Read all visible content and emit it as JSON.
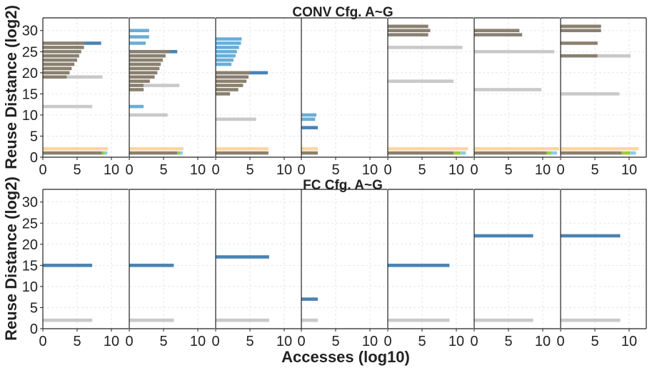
{
  "figure": {
    "top_title": "CONV Cfg. A~G",
    "bottom_title": "FC Cfg. A~G",
    "ylabel": "Reuse Distance (log2)",
    "xlabel": "Accesses (log10)"
  },
  "colors": {
    "dark": "#8a8070",
    "blue": "#4a83b4",
    "lightblue": "#6aaed6",
    "gray": "#c9c9c9",
    "orange": "#fdd5a0",
    "green": "#9acd32",
    "cyan": "#87ceeb"
  },
  "chart_data": {
    "type": "bar",
    "orientation": "horizontal",
    "grid": true,
    "xlim": [
      0,
      12.5
    ],
    "ylim": [
      0,
      33
    ],
    "xticks": [
      0,
      5,
      10
    ],
    "yticks": [
      0,
      5,
      10,
      15,
      20,
      25,
      30
    ],
    "rows": [
      {
        "title": "CONV Cfg. A~G",
        "subplots": [
          {
            "bars": [
              {
                "y": 27,
                "start": 0,
                "end": 6,
                "color": "dark"
              },
              {
                "y": 27,
                "start": 6,
                "end": 8.5,
                "color": "blue"
              },
              {
                "y": 26,
                "start": 0,
                "end": 6,
                "color": "dark"
              },
              {
                "y": 25,
                "start": 0,
                "end": 5.6,
                "color": "dark"
              },
              {
                "y": 24,
                "start": 0,
                "end": 5.3,
                "color": "dark"
              },
              {
                "y": 23,
                "start": 0,
                "end": 5,
                "color": "dark"
              },
              {
                "y": 22,
                "start": 0,
                "end": 4.6,
                "color": "dark"
              },
              {
                "y": 21,
                "start": 0,
                "end": 4.2,
                "color": "dark"
              },
              {
                "y": 20,
                "start": 0,
                "end": 3.9,
                "color": "dark"
              },
              {
                "y": 19,
                "start": 0,
                "end": 3.5,
                "color": "dark"
              },
              {
                "y": 19,
                "start": 3.5,
                "end": 8.7,
                "color": "gray"
              },
              {
                "y": 12,
                "start": 0,
                "end": 7.2,
                "color": "gray"
              },
              {
                "y": 2,
                "start": 0,
                "end": 9.5,
                "color": "orange"
              },
              {
                "y": 1,
                "start": 0,
                "end": 8.6,
                "color": "dark"
              },
              {
                "y": 1,
                "start": 8.6,
                "end": 9.0,
                "color": "green"
              },
              {
                "y": 1,
                "start": 9.0,
                "end": 9.4,
                "color": "cyan"
              }
            ]
          },
          {
            "bars": [
              {
                "y": 30,
                "start": 0,
                "end": 2.9,
                "color": "lightblue"
              },
              {
                "y": 28.5,
                "start": 0,
                "end": 2.9,
                "color": "lightblue"
              },
              {
                "y": 27,
                "start": 0,
                "end": 2.4,
                "color": "lightblue"
              },
              {
                "y": 25,
                "start": 0,
                "end": 7,
                "color": "blue"
              },
              {
                "y": 25,
                "start": 0,
                "end": 5.9,
                "color": "dark"
              },
              {
                "y": 24,
                "start": 0,
                "end": 5.3,
                "color": "dark"
              },
              {
                "y": 23,
                "start": 0,
                "end": 4.9,
                "color": "dark"
              },
              {
                "y": 22,
                "start": 0,
                "end": 4.6,
                "color": "dark"
              },
              {
                "y": 21,
                "start": 0,
                "end": 4.4,
                "color": "dark"
              },
              {
                "y": 20,
                "start": 0,
                "end": 4.1,
                "color": "dark"
              },
              {
                "y": 19,
                "start": 0,
                "end": 3.7,
                "color": "dark"
              },
              {
                "y": 18,
                "start": 0,
                "end": 3.0,
                "color": "dark"
              },
              {
                "y": 17,
                "start": 0,
                "end": 2.1,
                "color": "dark"
              },
              {
                "y": 17,
                "start": 2.1,
                "end": 7.3,
                "color": "gray"
              },
              {
                "y": 16,
                "start": 0,
                "end": 2.1,
                "color": "dark"
              },
              {
                "y": 12,
                "start": 0,
                "end": 2.1,
                "color": "lightblue"
              },
              {
                "y": 10,
                "start": 0,
                "end": 5.6,
                "color": "gray"
              },
              {
                "y": 2,
                "start": 0,
                "end": 7.9,
                "color": "orange"
              },
              {
                "y": 1,
                "start": 0,
                "end": 7.0,
                "color": "dark"
              },
              {
                "y": 1,
                "start": 7.0,
                "end": 7.4,
                "color": "green"
              },
              {
                "y": 1,
                "start": 7.4,
                "end": 7.8,
                "color": "cyan"
              }
            ]
          },
          {
            "bars": [
              {
                "y": 28,
                "start": 0,
                "end": 3.8,
                "color": "lightblue"
              },
              {
                "y": 27,
                "start": 0,
                "end": 3.7,
                "color": "lightblue"
              },
              {
                "y": 26,
                "start": 0,
                "end": 3.4,
                "color": "lightblue"
              },
              {
                "y": 25,
                "start": 0,
                "end": 3.1,
                "color": "lightblue"
              },
              {
                "y": 24,
                "start": 0,
                "end": 2.9,
                "color": "lightblue"
              },
              {
                "y": 23,
                "start": 0,
                "end": 2.6,
                "color": "lightblue"
              },
              {
                "y": 22,
                "start": 0,
                "end": 2.3,
                "color": "lightblue"
              },
              {
                "y": 20,
                "start": 0,
                "end": 7.6,
                "color": "blue"
              },
              {
                "y": 20,
                "start": 0,
                "end": 5.0,
                "color": "dark"
              },
              {
                "y": 19,
                "start": 0,
                "end": 4.8,
                "color": "dark"
              },
              {
                "y": 18,
                "start": 0,
                "end": 4.5,
                "color": "dark"
              },
              {
                "y": 17,
                "start": 0,
                "end": 4.0,
                "color": "dark"
              },
              {
                "y": 16,
                "start": 0,
                "end": 3.3,
                "color": "dark"
              },
              {
                "y": 15,
                "start": 0,
                "end": 2.1,
                "color": "dark"
              },
              {
                "y": 9,
                "start": 0,
                "end": 5.9,
                "color": "gray"
              },
              {
                "y": 2,
                "start": 0,
                "end": 7.7,
                "color": "orange"
              },
              {
                "y": 1,
                "start": 0,
                "end": 7.7,
                "color": "dark"
              }
            ]
          },
          {
            "bars": [
              {
                "y": 10,
                "start": 0,
                "end": 2.2,
                "color": "lightblue"
              },
              {
                "y": 9,
                "start": 0,
                "end": 2.0,
                "color": "dark"
              },
              {
                "y": 9,
                "start": 0,
                "end": 2.0,
                "color": "lightblue"
              },
              {
                "y": 7,
                "start": 0,
                "end": 2.4,
                "color": "blue"
              },
              {
                "y": 2,
                "start": 0,
                "end": 2.4,
                "color": "orange"
              },
              {
                "y": 1,
                "start": 0,
                "end": 2.4,
                "color": "dark"
              }
            ]
          },
          {
            "bars": [
              {
                "y": 31,
                "start": 0,
                "end": 5.9,
                "color": "dark"
              },
              {
                "y": 30,
                "start": 0,
                "end": 6.2,
                "color": "dark"
              },
              {
                "y": 29,
                "start": 0,
                "end": 5.9,
                "color": "dark"
              },
              {
                "y": 26,
                "start": 0,
                "end": 10.9,
                "color": "gray"
              },
              {
                "y": 18,
                "start": 0,
                "end": 9.6,
                "color": "gray"
              },
              {
                "y": 2,
                "start": 0,
                "end": 11.7,
                "color": "orange"
              },
              {
                "y": 1,
                "start": 0,
                "end": 9.6,
                "color": "dark"
              },
              {
                "y": 1,
                "start": 9.6,
                "end": 10.6,
                "color": "green"
              },
              {
                "y": 1,
                "start": 10.6,
                "end": 11.4,
                "color": "cyan"
              }
            ]
          },
          {
            "bars": [
              {
                "y": 30,
                "start": 0,
                "end": 6.6,
                "color": "dark"
              },
              {
                "y": 29,
                "start": 0,
                "end": 7.0,
                "color": "dark"
              },
              {
                "y": 25,
                "start": 0,
                "end": 11.7,
                "color": "gray"
              },
              {
                "y": 16,
                "start": 0,
                "end": 9.8,
                "color": "gray"
              },
              {
                "y": 2,
                "start": 0,
                "end": 12.4,
                "color": "orange"
              },
              {
                "y": 1,
                "start": 0,
                "end": 10.6,
                "color": "dark"
              },
              {
                "y": 1,
                "start": 10.6,
                "end": 11.2,
                "color": "green"
              },
              {
                "y": 1,
                "start": 11.2,
                "end": 12.1,
                "color": "cyan"
              }
            ]
          },
          {
            "bars": [
              {
                "y": 31,
                "start": 0,
                "end": 5.9,
                "color": "dark"
              },
              {
                "y": 30,
                "start": 0,
                "end": 5.9,
                "color": "dark"
              },
              {
                "y": 27,
                "start": 0,
                "end": 5.4,
                "color": "dark"
              },
              {
                "y": 24,
                "start": 0,
                "end": 5.4,
                "color": "dark"
              },
              {
                "y": 24,
                "start": 5.4,
                "end": 10.2,
                "color": "gray"
              },
              {
                "y": 15,
                "start": 0,
                "end": 8.6,
                "color": "gray"
              },
              {
                "y": 2,
                "start": 0,
                "end": 11.4,
                "color": "orange"
              },
              {
                "y": 1,
                "start": 0,
                "end": 8.9,
                "color": "dark"
              },
              {
                "y": 1,
                "start": 8.9,
                "end": 10.1,
                "color": "green"
              },
              {
                "y": 1,
                "start": 10.1,
                "end": 11.0,
                "color": "cyan"
              }
            ]
          }
        ]
      },
      {
        "title": "FC Cfg. A~G",
        "subplots": [
          {
            "bars": [
              {
                "y": 15,
                "start": 0,
                "end": 7.2,
                "color": "blue"
              },
              {
                "y": 2,
                "start": 0,
                "end": 7.2,
                "color": "gray"
              }
            ]
          },
          {
            "bars": [
              {
                "y": 15,
                "start": 0,
                "end": 6.5,
                "color": "blue"
              },
              {
                "y": 2,
                "start": 0,
                "end": 6.5,
                "color": "gray"
              }
            ]
          },
          {
            "bars": [
              {
                "y": 17,
                "start": 0,
                "end": 7.8,
                "color": "blue"
              },
              {
                "y": 2,
                "start": 0,
                "end": 7.8,
                "color": "gray"
              }
            ]
          },
          {
            "bars": [
              {
                "y": 7,
                "start": 0,
                "end": 2.4,
                "color": "blue"
              },
              {
                "y": 2,
                "start": 0,
                "end": 2.4,
                "color": "gray"
              }
            ]
          },
          {
            "bars": [
              {
                "y": 15,
                "start": 0,
                "end": 9.0,
                "color": "blue"
              },
              {
                "y": 2,
                "start": 0,
                "end": 9.0,
                "color": "gray"
              }
            ]
          },
          {
            "bars": [
              {
                "y": 22,
                "start": 0,
                "end": 8.6,
                "color": "blue"
              },
              {
                "y": 2,
                "start": 0,
                "end": 8.6,
                "color": "gray"
              }
            ]
          },
          {
            "bars": [
              {
                "y": 22,
                "start": 0,
                "end": 8.7,
                "color": "blue"
              },
              {
                "y": 2,
                "start": 0,
                "end": 8.7,
                "color": "gray"
              }
            ]
          }
        ]
      }
    ]
  }
}
